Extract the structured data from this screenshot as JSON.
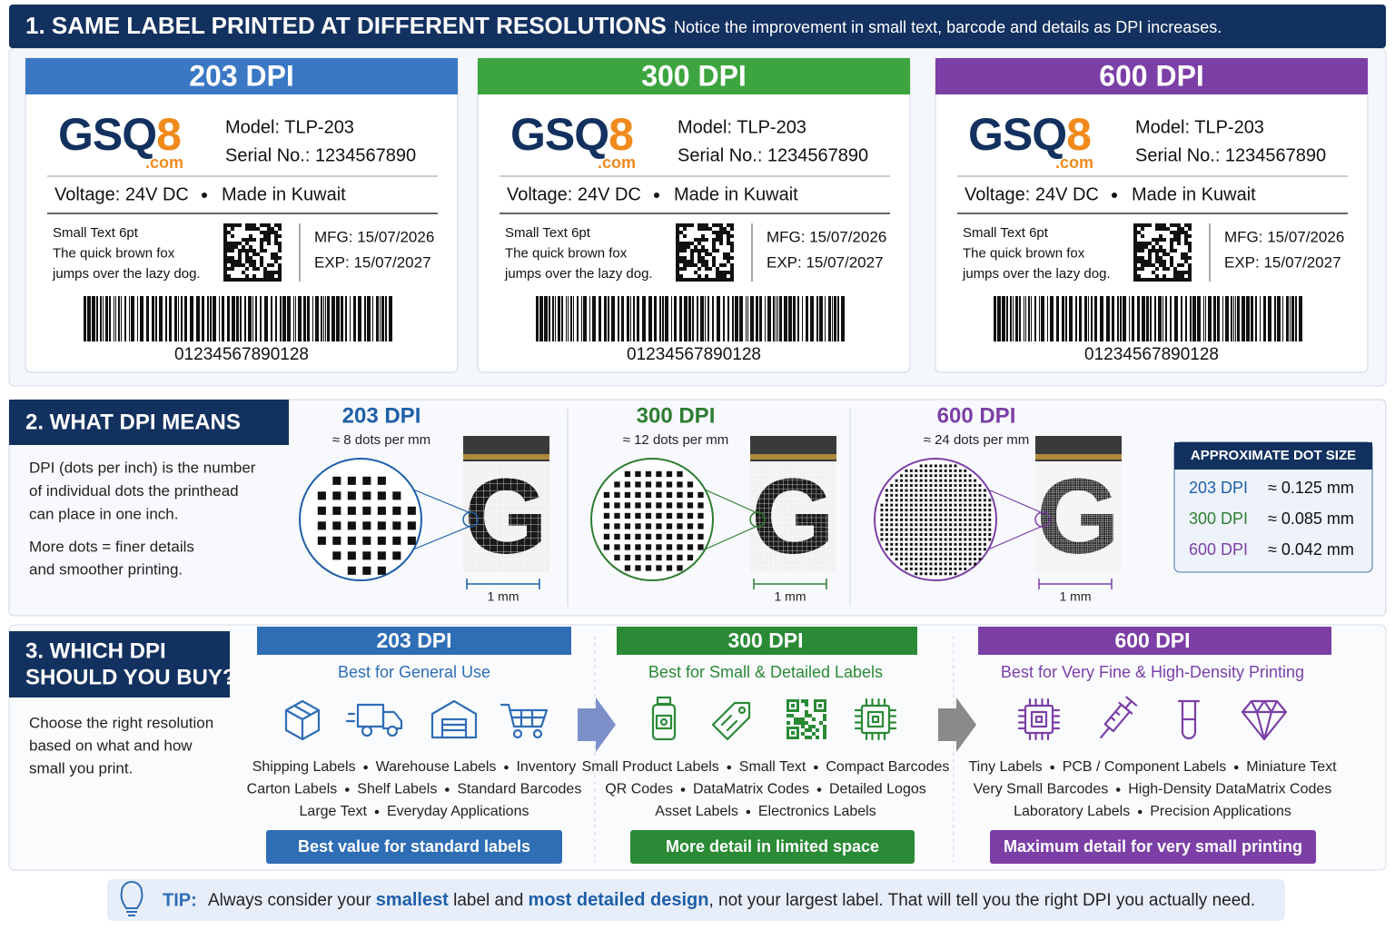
{
  "section1": {
    "title": "1. SAME LABEL PRINTED AT DIFFERENT RESOLUTIONS",
    "subtitle": "Notice the improvement in small text, barcode and details as DPI increases.",
    "labels": [
      {
        "dpi": "203 DPI",
        "color": "#3a78c4",
        "logo": "GSQ",
        "logo_accent": "8",
        "logo_domain": ".com",
        "model": "Model: TLP-203",
        "serial": "Serial No.: 1234567890",
        "voltage": "Voltage: 24V DC",
        "origin": "Made in Kuwait",
        "small_text": [
          "Small Text 6pt",
          "The quick brown fox",
          "jumps over the lazy dog."
        ],
        "mfg": "MFG: 15/07/2026",
        "exp": "EXP: 15/07/2027",
        "barcode": "01234567890128"
      },
      {
        "dpi": "300 DPI",
        "color": "#3da53f",
        "logo": "GSQ",
        "logo_accent": "8",
        "logo_domain": ".com",
        "model": "Model: TLP-203",
        "serial": "Serial No.: 1234567890",
        "voltage": "Voltage: 24V DC",
        "origin": "Made in Kuwait",
        "small_text": [
          "Small Text 6pt",
          "The quick brown fox",
          "jumps over the lazy dog."
        ],
        "mfg": "MFG: 15/07/2026",
        "exp": "EXP: 15/07/2027",
        "barcode": "01234567890128"
      },
      {
        "dpi": "600 DPI",
        "color": "#7b3fa6",
        "logo": "GSQ",
        "logo_accent": "8",
        "logo_domain": ".com",
        "model": "Model: TLP-203",
        "serial": "Serial No.: 1234567890",
        "voltage": "Voltage: 24V DC",
        "origin": "Made in Kuwait",
        "small_text": [
          "Small Text 6pt",
          "The quick brown fox",
          "jumps over the lazy dog."
        ],
        "mfg": "MFG: 15/07/2026",
        "exp": "EXP: 15/07/2027",
        "barcode": "01234567890128"
      }
    ]
  },
  "section2": {
    "title": "2. WHAT DPI MEANS",
    "description": [
      "DPI (dots per inch) is the number",
      "of individual dots the printhead",
      "can place in one inch."
    ],
    "description2": [
      "More dots = finer details",
      "and smoother printing."
    ],
    "panels": [
      {
        "dpi": "203 DPI",
        "color": "#1f5fa8",
        "density": "≈ 8 dots per mm",
        "glyph": "G",
        "scale": "1 mm"
      },
      {
        "dpi": "300 DPI",
        "color": "#2e7d32",
        "density": "≈ 12 dots per mm",
        "glyph": "G",
        "scale": "1 mm"
      },
      {
        "dpi": "600 DPI",
        "color": "#7b3fa6",
        "density": "≈ 24 dots per mm",
        "glyph": "G",
        "scale": "1 mm"
      }
    ],
    "dot_size": {
      "title": "APPROXIMATE DOT SIZE",
      "rows": [
        {
          "dpi": "203 DPI",
          "color": "#1f5fa8",
          "size": "≈ 0.125 mm"
        },
        {
          "dpi": "300 DPI",
          "color": "#2e7d32",
          "size": "≈ 0.085 mm"
        },
        {
          "dpi": "600 DPI",
          "color": "#7b3fa6",
          "size": "≈ 0.042 mm"
        }
      ]
    }
  },
  "section3": {
    "title": [
      "3. WHICH DPI",
      "SHOULD YOU BUY?"
    ],
    "description": [
      "Choose the right resolution",
      "based on what and how",
      "small you print."
    ],
    "options": [
      {
        "dpi": "203 DPI",
        "color": "#2f6db5",
        "subtitle": "Best for General Use",
        "lines": [
          [
            "Shipping Labels",
            "Warehouse Labels",
            "Inventory"
          ],
          [
            "Carton Labels",
            "Shelf Labels",
            "Standard Barcodes"
          ],
          [
            "Large Text",
            "Everyday Applications"
          ]
        ],
        "button": "Best value for standard labels"
      },
      {
        "dpi": "300 DPI",
        "color": "#2a8a35",
        "subtitle": "Best for Small & Detailed Labels",
        "lines": [
          [
            "Small Product Labels",
            "Small Text",
            "Compact Barcodes"
          ],
          [
            "QR Codes",
            "DataMatrix Codes",
            "Detailed Logos"
          ],
          [
            "Asset Labels",
            "Electronics Labels"
          ]
        ],
        "button": "More detail in limited space"
      },
      {
        "dpi": "600 DPI",
        "color": "#7b3fa6",
        "subtitle": "Best for Very Fine & High-Density Printing",
        "lines": [
          [
            "Tiny Labels",
            "PCB / Component Labels",
            "Miniature Text"
          ],
          [
            "Very Small Barcodes",
            "High-Density DataMatrix Codes"
          ],
          [
            "Laboratory Labels",
            "Precision Applications"
          ]
        ],
        "button": "Maximum detail for very small printing"
      }
    ]
  },
  "tip": {
    "label": "TIP:",
    "parts": [
      "Always consider your ",
      "smallest",
      " label and ",
      "most detailed design",
      ", not your largest label. That will tell you the right DPI you actually need."
    ]
  }
}
